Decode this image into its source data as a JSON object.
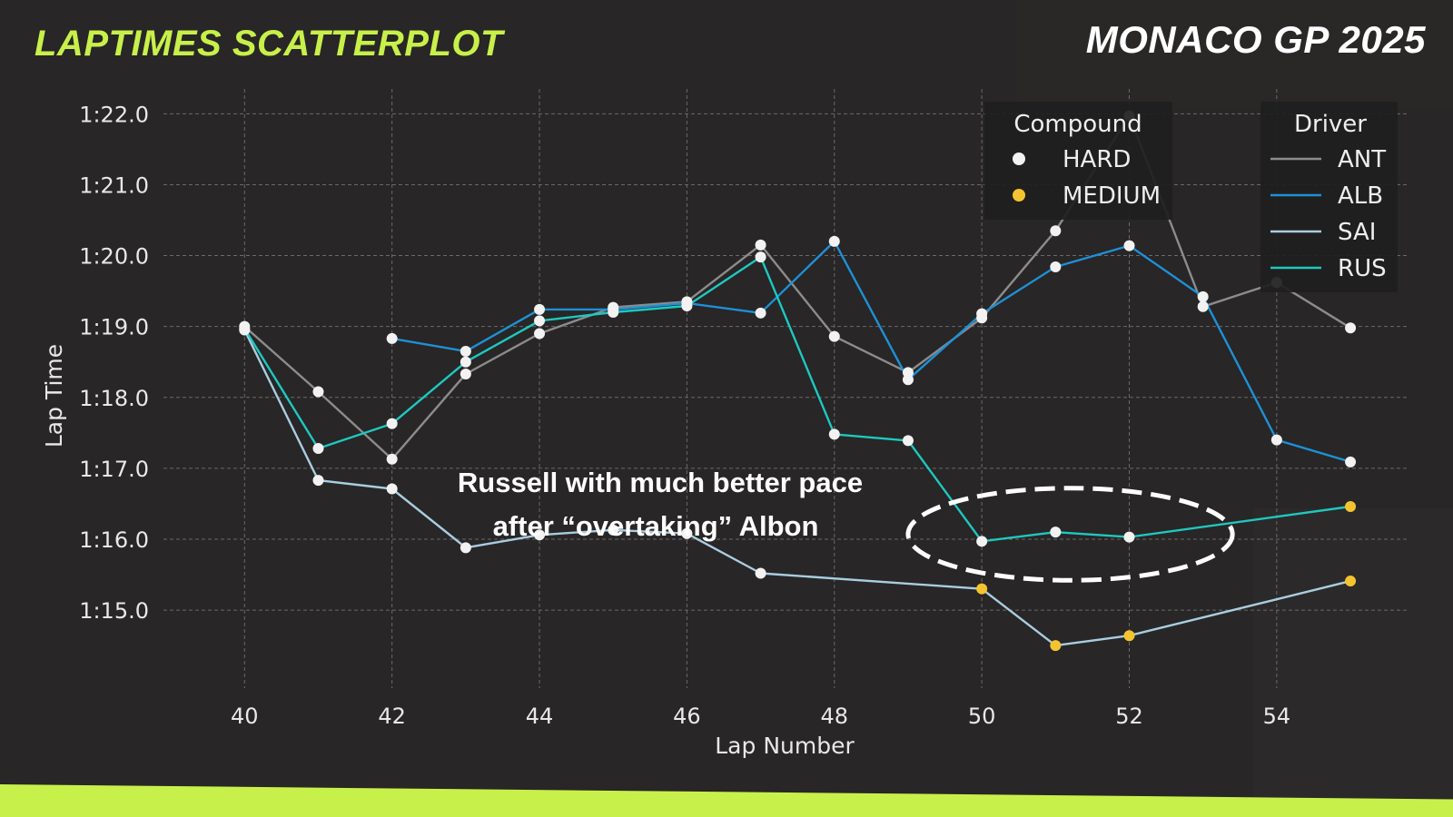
{
  "header": {
    "title": "LAPTIMES SCATTERPLOT",
    "event": "MONACO GP 2025"
  },
  "colors": {
    "background": "#282626",
    "accent": "#c8f04a",
    "grid": "#6a6a6a",
    "HARD": "#f2f2f2",
    "MEDIUM": "#f4c430",
    "ANT": "#8c8c8c",
    "ALB": "#1e90d6",
    "SAI": "#a9cde0",
    "RUS": "#1ec8c0"
  },
  "chart_data": {
    "type": "scatter",
    "title": "",
    "xlabel": "Lap Number",
    "ylabel": "Lap Time",
    "xlim": [
      38.9,
      55.8
    ],
    "ylim": [
      73.9,
      82.35
    ],
    "xticks": [
      40,
      42,
      44,
      46,
      48,
      50,
      52,
      54
    ],
    "yticks": [
      {
        "value": 75,
        "label": "1:15.0"
      },
      {
        "value": 76,
        "label": "1:16.0"
      },
      {
        "value": 77,
        "label": "1:17.0"
      },
      {
        "value": 78,
        "label": "1:18.0"
      },
      {
        "value": 79,
        "label": "1:19.0"
      },
      {
        "value": 80,
        "label": "1:20.0"
      },
      {
        "value": 81,
        "label": "1:21.0"
      },
      {
        "value": 82,
        "label": "1:22.0"
      }
    ],
    "grid": true,
    "legend_compound": {
      "title": "Compound",
      "entries": [
        "HARD",
        "MEDIUM"
      ],
      "placement": "top-right"
    },
    "legend_driver": {
      "title": "Driver",
      "entries": [
        "ANT",
        "ALB",
        "SAI",
        "RUS"
      ],
      "placement": "top-right"
    },
    "series": [
      {
        "name": "ANT",
        "points": [
          {
            "x": 40,
            "y": 79.0,
            "compound": "HARD"
          },
          {
            "x": 41,
            "y": 78.08,
            "compound": "HARD"
          },
          {
            "x": 42,
            "y": 77.13,
            "compound": "HARD"
          },
          {
            "x": 43,
            "y": 78.33,
            "compound": "HARD"
          },
          {
            "x": 44,
            "y": 78.9,
            "compound": "HARD"
          },
          {
            "x": 45,
            "y": 79.27,
            "compound": "HARD"
          },
          {
            "x": 46,
            "y": 79.35,
            "compound": "HARD"
          },
          {
            "x": 47,
            "y": 80.15,
            "compound": "HARD"
          },
          {
            "x": 48,
            "y": 78.86,
            "compound": "HARD"
          },
          {
            "x": 49,
            "y": 78.35,
            "compound": "HARD"
          },
          {
            "x": 50,
            "y": 79.12,
            "compound": "HARD"
          },
          {
            "x": 51,
            "y": 80.35,
            "compound": "HARD"
          },
          {
            "x": 52,
            "y": 81.97,
            "compound": "HARD"
          },
          {
            "x": 53,
            "y": 79.28,
            "compound": "HARD"
          },
          {
            "x": 54,
            "y": 79.62,
            "compound": "HARD"
          },
          {
            "x": 55,
            "y": 78.98,
            "compound": "HARD"
          }
        ]
      },
      {
        "name": "ALB",
        "points": [
          {
            "x": 42,
            "y": 78.83,
            "compound": "HARD"
          },
          {
            "x": 43,
            "y": 78.65,
            "compound": "HARD"
          },
          {
            "x": 44,
            "y": 79.24,
            "compound": "HARD"
          },
          {
            "x": 45,
            "y": 79.24,
            "compound": "HARD"
          },
          {
            "x": 46,
            "y": 79.33,
            "compound": "HARD"
          },
          {
            "x": 47,
            "y": 79.19,
            "compound": "HARD"
          },
          {
            "x": 48,
            "y": 80.2,
            "compound": "HARD"
          },
          {
            "x": 49,
            "y": 78.25,
            "compound": "HARD"
          },
          {
            "x": 50,
            "y": 79.18,
            "compound": "HARD"
          },
          {
            "x": 51,
            "y": 79.84,
            "compound": "HARD"
          },
          {
            "x": 52,
            "y": 80.14,
            "compound": "HARD"
          },
          {
            "x": 53,
            "y": 79.42,
            "compound": "HARD"
          },
          {
            "x": 54,
            "y": 77.4,
            "compound": "HARD"
          },
          {
            "x": 55,
            "y": 77.09,
            "compound": "HARD"
          }
        ]
      },
      {
        "name": "SAI",
        "points": [
          {
            "x": 40,
            "y": 78.95,
            "compound": "HARD"
          },
          {
            "x": 41,
            "y": 76.83,
            "compound": "HARD"
          },
          {
            "x": 42,
            "y": 76.71,
            "compound": "HARD"
          },
          {
            "x": 43,
            "y": 75.88,
            "compound": "HARD"
          },
          {
            "x": 44,
            "y": 76.06,
            "compound": "HARD"
          },
          {
            "x": 45,
            "y": 76.13,
            "compound": "HARD"
          },
          {
            "x": 46,
            "y": 76.08,
            "compound": "HARD"
          },
          {
            "x": 47,
            "y": 75.52,
            "compound": "HARD"
          },
          {
            "x": 50,
            "y": 75.3,
            "compound": "MEDIUM"
          },
          {
            "x": 51,
            "y": 74.5,
            "compound": "MEDIUM"
          },
          {
            "x": 52,
            "y": 74.64,
            "compound": "MEDIUM"
          },
          {
            "x": 55,
            "y": 75.41,
            "compound": "MEDIUM"
          }
        ]
      },
      {
        "name": "RUS",
        "points": [
          {
            "x": 40,
            "y": 78.97,
            "compound": "HARD"
          },
          {
            "x": 41,
            "y": 77.28,
            "compound": "HARD"
          },
          {
            "x": 42,
            "y": 77.63,
            "compound": "HARD"
          },
          {
            "x": 43,
            "y": 78.5,
            "compound": "HARD"
          },
          {
            "x": 44,
            "y": 79.08,
            "compound": "HARD"
          },
          {
            "x": 45,
            "y": 79.2,
            "compound": "HARD"
          },
          {
            "x": 46,
            "y": 79.29,
            "compound": "HARD"
          },
          {
            "x": 47,
            "y": 79.98,
            "compound": "HARD"
          },
          {
            "x": 48,
            "y": 77.48,
            "compound": "HARD"
          },
          {
            "x": 49,
            "y": 77.39,
            "compound": "HARD"
          },
          {
            "x": 50,
            "y": 75.97,
            "compound": "HARD"
          },
          {
            "x": 51,
            "y": 76.1,
            "compound": "HARD"
          },
          {
            "x": 52,
            "y": 76.03,
            "compound": "HARD"
          },
          {
            "x": 55,
            "y": 76.46,
            "compound": "MEDIUM"
          }
        ]
      }
    ],
    "annotation": {
      "lines": [
        "Russell with much better pace",
        "after “overtaking” Albon"
      ],
      "highlight": {
        "x_center": 51.2,
        "y_center": 76.07,
        "x_radius": 2.2,
        "y_radius": 0.65
      }
    }
  }
}
